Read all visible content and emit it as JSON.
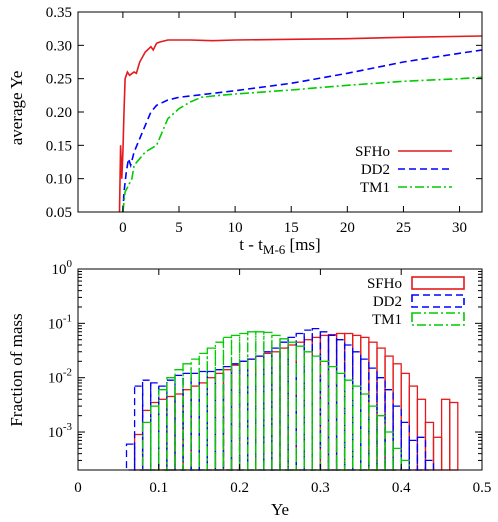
{
  "chart_data": [
    {
      "type": "line",
      "xlabel_main": "t - t",
      "xlabel_sub": "M-6",
      "xlabel_unit": " [ms]",
      "ylabel": "average Ye",
      "xlim": [
        -4,
        32
      ],
      "ylim": [
        0.05,
        0.35
      ],
      "xticks": [
        0,
        5,
        10,
        15,
        20,
        25,
        30
      ],
      "xtick_labels": [
        "0",
        "5",
        "10",
        "15",
        "20",
        "25",
        "30"
      ],
      "yticks": [
        0.05,
        0.1,
        0.15,
        0.2,
        0.25,
        0.3,
        0.35
      ],
      "ytick_labels": [
        "0.05",
        "0.10",
        "0.15",
        "0.20",
        "0.25",
        "0.30",
        "0.35"
      ],
      "grid": false,
      "legend_position": "right",
      "series": [
        {
          "name": "SFHo",
          "color": "#e41a1c",
          "dash": "solid",
          "points": [
            [
              -0.3,
              0.05
            ],
            [
              -0.2,
              0.15
            ],
            [
              -0.1,
              0.1
            ],
            [
              0,
              0.14
            ],
            [
              0.1,
              0.2
            ],
            [
              0.2,
              0.25
            ],
            [
              0.4,
              0.26
            ],
            [
              0.6,
              0.255
            ],
            [
              1,
              0.26
            ],
            [
              1.2,
              0.258
            ],
            [
              1.5,
              0.275
            ],
            [
              2,
              0.29
            ],
            [
              2.5,
              0.298
            ],
            [
              2.7,
              0.293
            ],
            [
              3,
              0.303
            ],
            [
              3.3,
              0.305
            ],
            [
              4,
              0.308
            ],
            [
              6,
              0.308
            ],
            [
              8,
              0.307
            ],
            [
              10,
              0.308
            ],
            [
              15,
              0.309
            ],
            [
              20,
              0.31
            ],
            [
              25,
              0.312
            ],
            [
              32,
              0.314
            ]
          ]
        },
        {
          "name": "DD2",
          "color": "#0000ff",
          "dash": "dashed",
          "points": [
            [
              0,
              0.05
            ],
            [
              0.1,
              0.08
            ],
            [
              0.3,
              0.11
            ],
            [
              0.5,
              0.13
            ],
            [
              0.7,
              0.12
            ],
            [
              1,
              0.14
            ],
            [
              1.5,
              0.16
            ],
            [
              2,
              0.18
            ],
            [
              2.5,
              0.2
            ],
            [
              3,
              0.21
            ],
            [
              4,
              0.218
            ],
            [
              5,
              0.222
            ],
            [
              6,
              0.224
            ],
            [
              7,
              0.226
            ],
            [
              10,
              0.232
            ],
            [
              15,
              0.243
            ],
            [
              20,
              0.258
            ],
            [
              25,
              0.275
            ],
            [
              30,
              0.288
            ],
            [
              32,
              0.293
            ]
          ]
        },
        {
          "name": "TM1",
          "color": "#00cc00",
          "dash": "dashdot",
          "points": [
            [
              0,
              0.05
            ],
            [
              0.2,
              0.08
            ],
            [
              0.5,
              0.09
            ],
            [
              0.8,
              0.1
            ],
            [
              1,
              0.12
            ],
            [
              1.5,
              0.13
            ],
            [
              2,
              0.14
            ],
            [
              3,
              0.15
            ],
            [
              3.5,
              0.17
            ],
            [
              4,
              0.19
            ],
            [
              5,
              0.205
            ],
            [
              6,
              0.215
            ],
            [
              7,
              0.222
            ],
            [
              8,
              0.224
            ],
            [
              10,
              0.227
            ],
            [
              15,
              0.233
            ],
            [
              20,
              0.24
            ],
            [
              25,
              0.246
            ],
            [
              30,
              0.25
            ],
            [
              32,
              0.252
            ]
          ]
        }
      ]
    },
    {
      "type": "histogram",
      "xlabel": "Ye",
      "ylabel": "Fraction of mass",
      "xlim": [
        0,
        0.5
      ],
      "ylim_log": [
        0.0002,
        1
      ],
      "yscale": "log",
      "xticks": [
        0,
        0.1,
        0.2,
        0.3,
        0.4,
        0.5
      ],
      "xtick_labels": [
        "0",
        "0.1",
        "0.2",
        "0.3",
        "0.4",
        "0.5"
      ],
      "ytick_labels": [
        {
          "base": "10",
          "exp": "0",
          "value": 1
        },
        {
          "base": "10",
          "exp": "-1",
          "value": 0.1
        },
        {
          "base": "10",
          "exp": "-2",
          "value": 0.01
        },
        {
          "base": "10",
          "exp": "-3",
          "value": 0.001
        }
      ],
      "bin_width": 0.01,
      "legend_position": "top-right",
      "series": [
        {
          "name": "SFHo",
          "color": "#e41a1c",
          "dash": "solid",
          "bin_start": 0.07,
          "values": [
            0.0009,
            0.0025,
            0.0035,
            0.004,
            0.0045,
            0.005,
            0.006,
            0.007,
            0.008,
            0.01,
            0.012,
            0.014,
            0.017,
            0.02,
            0.022,
            0.025,
            0.028,
            0.03,
            0.035,
            0.04,
            0.045,
            0.05,
            0.055,
            0.06,
            0.062,
            0.065,
            0.065,
            0.06,
            0.055,
            0.045,
            0.035,
            0.025,
            0.018,
            0.012,
            0.007,
            0.004,
            0.0015,
            0.0008,
            0.004,
            0.0035
          ]
        },
        {
          "name": "DD2",
          "color": "#0000ff",
          "dash": "dashed",
          "bin_start": 0.06,
          "values": [
            0.0006,
            0.007,
            0.009,
            0.008,
            0.007,
            0.009,
            0.011,
            0.012,
            0.012,
            0.013,
            0.013,
            0.014,
            0.016,
            0.018,
            0.02,
            0.022,
            0.025,
            0.03,
            0.035,
            0.045,
            0.055,
            0.065,
            0.075,
            0.08,
            0.07,
            0.06,
            0.05,
            0.04,
            0.03,
            0.022,
            0.015,
            0.01,
            0.006,
            0.003,
            0.0015,
            0.0007,
            0.0008,
            0.0003
          ]
        },
        {
          "name": "TM1",
          "color": "#00cc00",
          "dash": "dashdot",
          "bin_start": 0.08,
          "values": [
            0.0015,
            0.003,
            0.006,
            0.01,
            0.014,
            0.018,
            0.022,
            0.028,
            0.035,
            0.045,
            0.055,
            0.06,
            0.065,
            0.07,
            0.07,
            0.068,
            0.06,
            0.052,
            0.045,
            0.038,
            0.03,
            0.025,
            0.02,
            0.016,
            0.012,
            0.009,
            0.007,
            0.005,
            0.003,
            0.002,
            0.001,
            0.0005,
            0.0003
          ]
        }
      ]
    }
  ]
}
